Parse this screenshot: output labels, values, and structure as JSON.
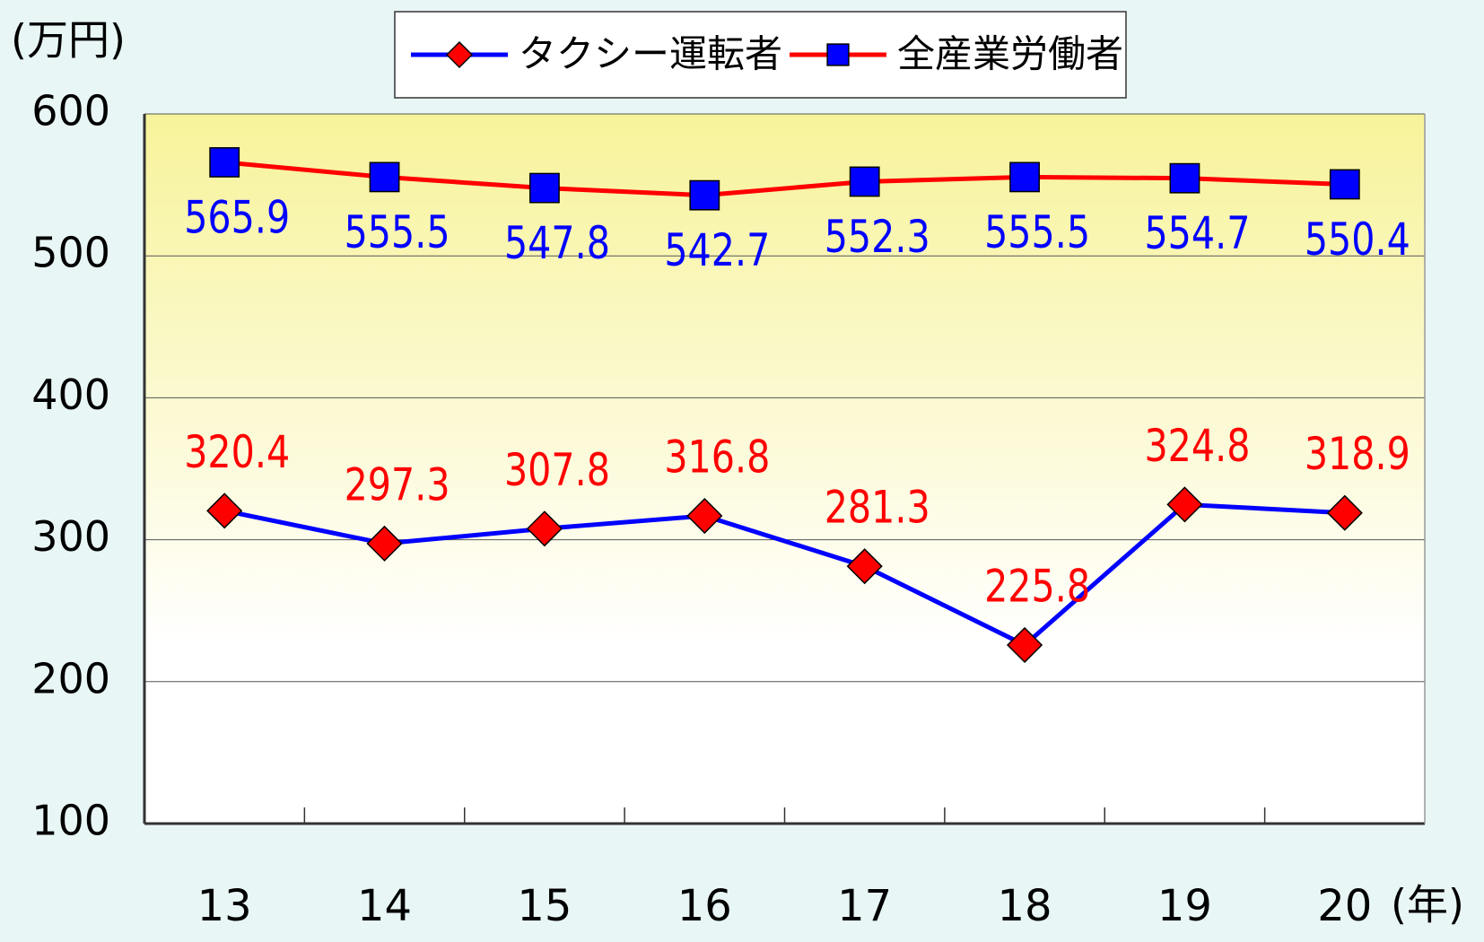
{
  "chart_data": {
    "type": "line",
    "y_axis_label": "(万円)",
    "x_axis_label": "(年)",
    "categories": [
      "13",
      "14",
      "15",
      "16",
      "17",
      "18",
      "19",
      "20"
    ],
    "series": [
      {
        "name": "タクシー運転者",
        "color": "#0000ff",
        "marker": "diamond",
        "marker_color": "#ff0000",
        "label_color": "#ff0000",
        "label_position": "above",
        "values": [
          320.4,
          297.3,
          307.8,
          316.8,
          281.3,
          225.8,
          324.8,
          318.9
        ]
      },
      {
        "name": "全産業労働者",
        "color": "#ff0000",
        "marker": "square",
        "marker_color": "#0000ff",
        "label_color": "#0000ff",
        "label_position": "below",
        "values": [
          565.9,
          555.5,
          547.8,
          542.7,
          552.3,
          555.5,
          554.7,
          550.4
        ]
      }
    ],
    "ylim": [
      100,
      600
    ],
    "yticks": [
      100,
      200,
      300,
      400,
      500,
      600
    ],
    "grid": true,
    "legend": "top"
  }
}
